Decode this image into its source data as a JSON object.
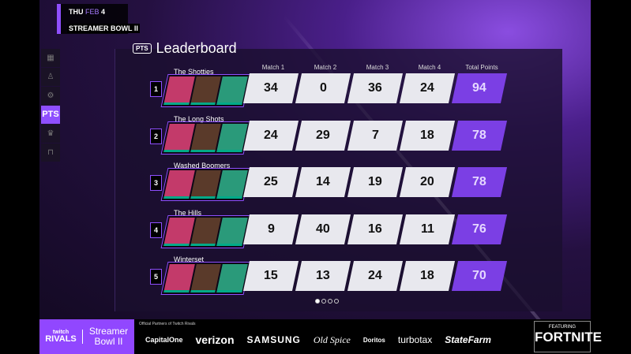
{
  "header": {
    "day": "THU",
    "date": "FEB",
    "daynum": "4",
    "event": "STREAMER BOWL II"
  },
  "sidebar": [
    {
      "icon": "calendar-icon"
    },
    {
      "icon": "teams-icon"
    },
    {
      "icon": "settings-icon"
    },
    {
      "label": "PTS",
      "active": true
    },
    {
      "icon": "trophy-icon"
    },
    {
      "icon": "bracket-icon"
    }
  ],
  "leaderboard": {
    "badge": "PTS",
    "title": "Leaderboard",
    "columns": [
      "Match 1",
      "Match 2",
      "Match 3",
      "Match 4",
      "Total Points"
    ],
    "rows": [
      {
        "rank": "1",
        "team": "The Shotties",
        "scores": [
          "34",
          "0",
          "36",
          "24"
        ],
        "total": "94"
      },
      {
        "rank": "2",
        "team": "The Long Shots",
        "scores": [
          "24",
          "29",
          "7",
          "18"
        ],
        "total": "78"
      },
      {
        "rank": "3",
        "team": "Washed Boomers",
        "scores": [
          "25",
          "14",
          "19",
          "20"
        ],
        "total": "78"
      },
      {
        "rank": "4",
        "team": "The Hills",
        "scores": [
          "9",
          "40",
          "16",
          "11"
        ],
        "total": "76"
      },
      {
        "rank": "5",
        "team": "Winterset",
        "scores": [
          "15",
          "13",
          "24",
          "18"
        ],
        "total": "70"
      }
    ]
  },
  "pagination": {
    "pages": 4,
    "current": 1
  },
  "footer": {
    "brand_top": "twitch",
    "brand": "RIVALS",
    "event1": "Streamer",
    "event2": "Bowl II",
    "partners_label": "Official Partners of Twitch Rivals",
    "partners": [
      "CapitalOne",
      "verizon",
      "SAMSUNG",
      "Old Spice",
      "Doritos",
      "turbotax",
      "StateFarm"
    ],
    "featuring": "FEATURING",
    "game": "FORTNITE"
  },
  "colors": {
    "accent": "#9147ff",
    "total_bg": "#7b3fe4"
  }
}
